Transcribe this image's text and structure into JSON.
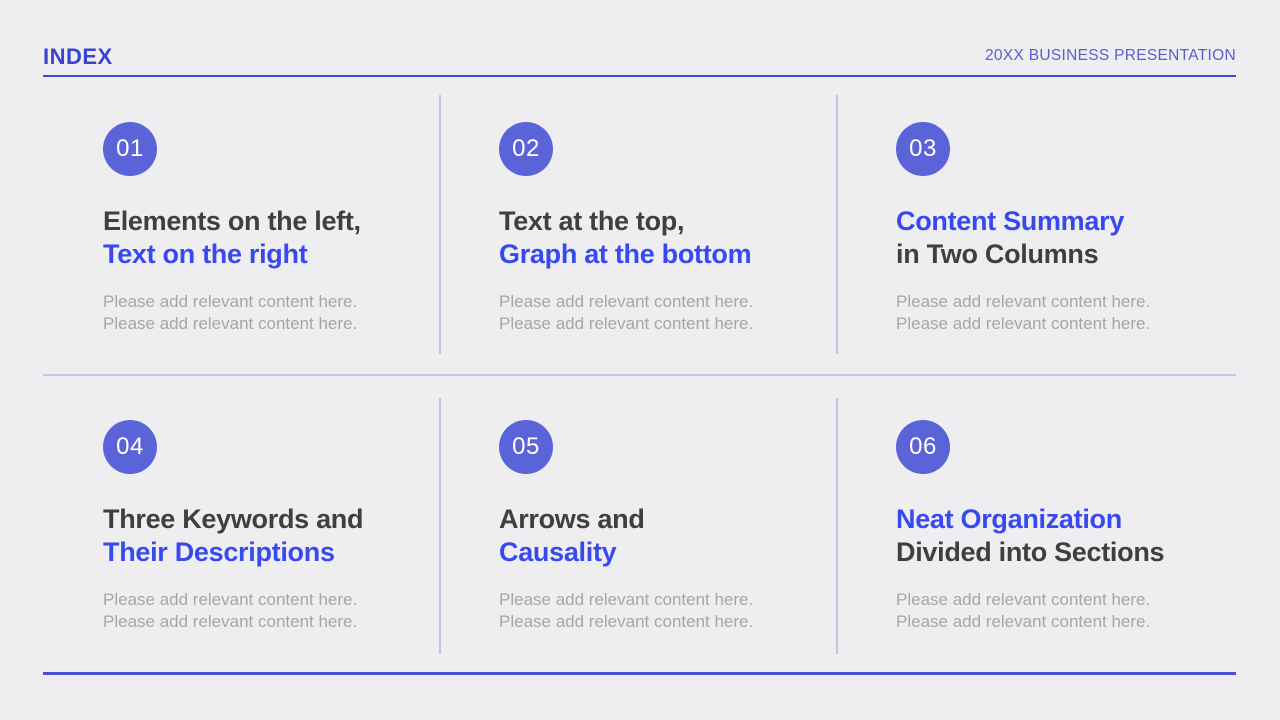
{
  "header": {
    "title": "INDEX",
    "subtitle": "20XX BUSINESS PRESENTATION"
  },
  "cells": [
    {
      "number": "01",
      "title_line1": "Elements on the left,",
      "title_line2": "Text on the right",
      "body_line1": "Please add relevant content here.",
      "body_line2": "Please add relevant content here."
    },
    {
      "number": "02",
      "title_line1": "Text at the top,",
      "title_line2": "Graph at the bottom",
      "body_line1": "Please add relevant content here.",
      "body_line2": "Please add relevant content here."
    },
    {
      "number": "03",
      "title_line1": "Content Summary",
      "title_line2": "in Two Columns",
      "body_line1": "Please add relevant content here.",
      "body_line2": "Please add relevant content here."
    },
    {
      "number": "04",
      "title_line1": "Three Keywords and",
      "title_line2": "Their Descriptions",
      "body_line1": "Please add relevant content here.",
      "body_line2": "Please add relevant content here."
    },
    {
      "number": "05",
      "title_line1": "Arrows and",
      "title_line2": "Causality",
      "body_line1": "Please add relevant content here.",
      "body_line2": "Please add relevant content here."
    },
    {
      "number": "06",
      "title_line1": "Neat Organization",
      "title_line2": "Divided into Sections",
      "body_line1": "Please add relevant content here.",
      "body_line2": "Please add relevant content here."
    }
  ],
  "colors": {
    "background": "#eeedf0",
    "header_title_blue": "#3a43d2",
    "subtitle_blue": "#585fd2",
    "top_rule_blue": "#4444cc",
    "bottom_rule_blue": "#4a50d6",
    "divider_lavender": "#c3c0e4",
    "circle_indigo": "#5b63d8",
    "title_dark": "#3f3f3f",
    "title_blue": "#3749ef",
    "body_gray": "#a6a6a8"
  }
}
